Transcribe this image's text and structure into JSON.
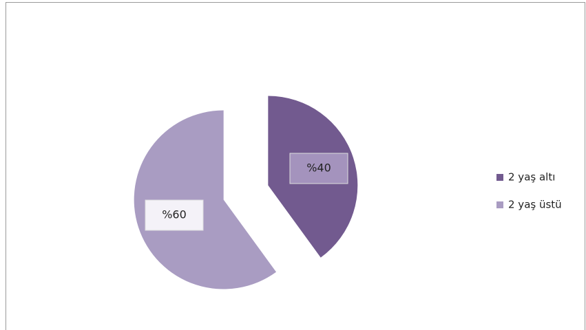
{
  "chart_data": {
    "type": "pie",
    "categories": [
      "2 yaş altı",
      "2 yaş üstü"
    ],
    "values": [
      40,
      60
    ],
    "value_labels": [
      "%40",
      "%60"
    ],
    "colors": [
      "#725a8f",
      "#a99cc2"
    ],
    "legend": "right"
  }
}
